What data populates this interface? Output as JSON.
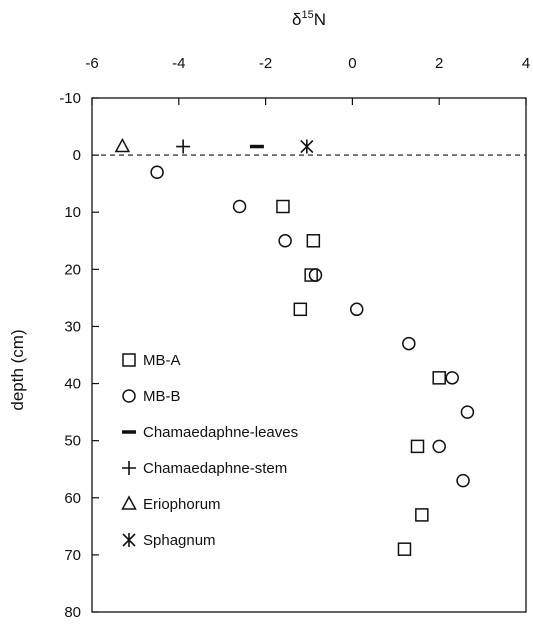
{
  "chart_data": {
    "type": "scatter",
    "title": "",
    "xlabel": "δ15N",
    "xlabel_main": "δ",
    "xlabel_sup": "15",
    "xlabel_tail": "N",
    "ylabel": "depth (cm)",
    "xlim": [
      -6,
      4
    ],
    "ylim": [
      -10,
      80
    ],
    "y_inverted": true,
    "x_axis_position": "top",
    "x_ticks": [
      -6,
      -4,
      -2,
      0,
      2,
      4
    ],
    "y_ticks": [
      -10,
      0,
      10,
      20,
      30,
      40,
      50,
      60,
      70,
      80
    ],
    "grid": false,
    "reference_line": {
      "y": 0,
      "style": "dashed"
    },
    "legend_position": "bottom-left",
    "series": [
      {
        "name": "MB-A",
        "marker": "square",
        "points": [
          {
            "x": -1.6,
            "y": 9
          },
          {
            "x": -0.9,
            "y": 15
          },
          {
            "x": -0.95,
            "y": 21
          },
          {
            "x": -1.2,
            "y": 27
          },
          {
            "x": 2.0,
            "y": 39
          },
          {
            "x": 1.5,
            "y": 51
          },
          {
            "x": 1.6,
            "y": 63
          },
          {
            "x": 1.2,
            "y": 69
          }
        ]
      },
      {
        "name": "MB-B",
        "marker": "circle",
        "points": [
          {
            "x": -4.5,
            "y": 3
          },
          {
            "x": -2.6,
            "y": 9
          },
          {
            "x": -1.55,
            "y": 15
          },
          {
            "x": -0.85,
            "y": 21
          },
          {
            "x": 0.1,
            "y": 27
          },
          {
            "x": 1.3,
            "y": 33
          },
          {
            "x": 2.3,
            "y": 39
          },
          {
            "x": 2.65,
            "y": 45
          },
          {
            "x": 2.0,
            "y": 51
          },
          {
            "x": 2.55,
            "y": 57
          }
        ]
      },
      {
        "name": "Chamaedaphne-leaves",
        "marker": "dash",
        "points": [
          {
            "x": -2.2,
            "y": -1.5
          }
        ]
      },
      {
        "name": "Chamaedaphne-stem",
        "marker": "plus",
        "points": [
          {
            "x": -3.9,
            "y": -1.5
          }
        ]
      },
      {
        "name": "Eriophorum",
        "marker": "triangle",
        "points": [
          {
            "x": -5.3,
            "y": -1.5
          }
        ]
      },
      {
        "name": "Sphagnum",
        "marker": "asterisk",
        "points": [
          {
            "x": -1.05,
            "y": -1.5
          }
        ]
      }
    ]
  }
}
